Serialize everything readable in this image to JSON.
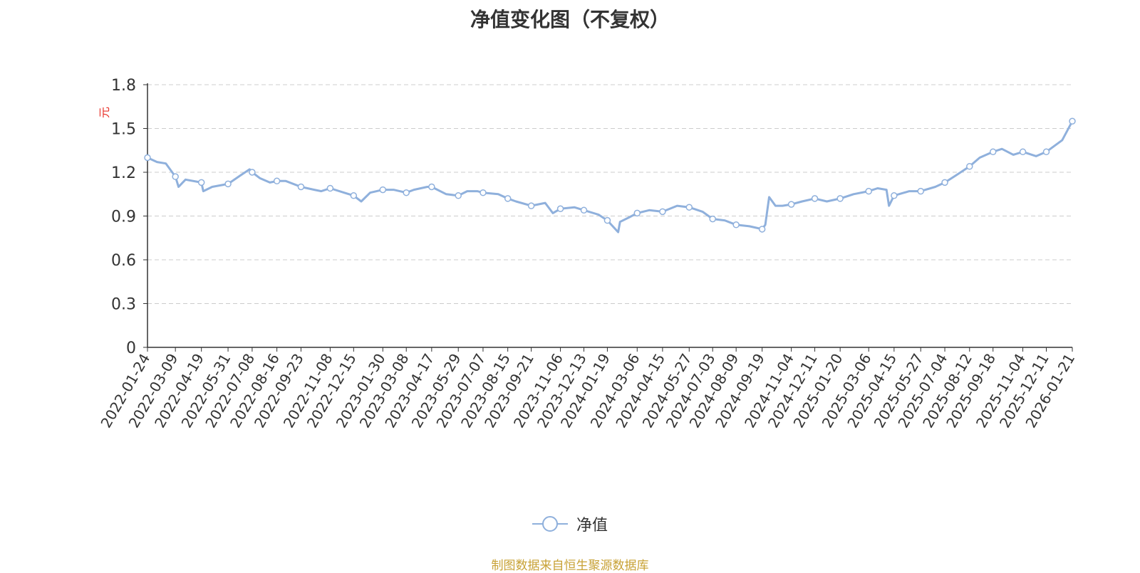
{
  "page": {
    "title": "净值变化图（不复权）",
    "source": "制图数据来自恒生聚源数据库"
  },
  "legend": {
    "label": "净值"
  },
  "colors": {
    "line": "#8fb0dc",
    "grid": "#cccccc",
    "axis": "#333333",
    "unit": "#e8322a",
    "source": "#c8a236"
  },
  "chart_data": {
    "type": "line",
    "title": "净值变化图（不复权）",
    "ylabel": "元",
    "ylim": [
      0,
      1.8
    ],
    "yticks": [
      "0",
      "0.3",
      "0.6",
      "0.9",
      "1.2",
      "1.5",
      "1.8"
    ],
    "grid": true,
    "legend_position": "bottom-center",
    "xtick_labels": [
      "2022-01-24",
      "2022-03-09",
      "2022-04-19",
      "2022-05-31",
      "2022-07-08",
      "2022-08-16",
      "2022-09-23",
      "2022-11-08",
      "2022-12-15",
      "2023-01-30",
      "2023-03-08",
      "2023-04-17",
      "2023-05-29",
      "2023-07-07",
      "2023-08-15",
      "2023-09-21",
      "2023-11-06",
      "2023-12-13",
      "2024-01-19",
      "2024-03-06",
      "2024-04-15",
      "2024-05-27",
      "2024-07-03",
      "2024-08-09",
      "2024-09-19",
      "2024-11-04",
      "2024-12-11",
      "2025-01-20",
      "2025-03-06",
      "2025-04-15",
      "2025-05-27",
      "2025-07-04",
      "2025-08-12",
      "2025-09-18",
      "2025-11-04",
      "2025-12-11",
      "2026-01-21"
    ],
    "series": [
      {
        "name": "净值",
        "x": [
          "2022-01-24",
          "2022-02-08",
          "2022-02-22",
          "2022-03-09",
          "2022-03-14",
          "2022-03-25",
          "2022-04-19",
          "2022-04-22",
          "2022-05-06",
          "2022-05-31",
          "2022-06-20",
          "2022-07-04",
          "2022-07-08",
          "2022-07-20",
          "2022-08-05",
          "2022-08-16",
          "2022-08-30",
          "2022-09-23",
          "2022-10-14",
          "2022-10-25",
          "2022-11-08",
          "2022-11-30",
          "2022-12-15",
          "2022-12-27",
          "2023-01-10",
          "2023-01-30",
          "2023-02-16",
          "2023-03-08",
          "2023-03-20",
          "2023-04-10",
          "2023-04-17",
          "2023-05-10",
          "2023-05-29",
          "2023-06-12",
          "2023-06-28",
          "2023-07-07",
          "2023-07-31",
          "2023-08-15",
          "2023-08-28",
          "2023-09-21",
          "2023-10-13",
          "2023-10-25",
          "2023-11-06",
          "2023-11-28",
          "2023-12-13",
          "2024-01-05",
          "2024-01-19",
          "2024-02-05",
          "2024-02-08",
          "2024-02-22",
          "2024-03-06",
          "2024-03-25",
          "2024-04-15",
          "2024-05-08",
          "2024-05-27",
          "2024-06-17",
          "2024-07-03",
          "2024-07-22",
          "2024-08-09",
          "2024-08-30",
          "2024-09-19",
          "2024-09-24",
          "2024-09-30",
          "2024-10-10",
          "2024-10-21",
          "2024-11-04",
          "2024-11-21",
          "2024-12-11",
          "2024-12-30",
          "2025-01-20",
          "2025-02-10",
          "2025-03-06",
          "2025-03-20",
          "2025-04-03",
          "2025-04-07",
          "2025-04-15",
          "2025-05-09",
          "2025-05-27",
          "2025-06-19",
          "2025-07-04",
          "2025-07-22",
          "2025-08-12",
          "2025-08-28",
          "2025-09-18",
          "2025-10-02",
          "2025-10-20",
          "2025-11-04",
          "2025-11-25",
          "2025-12-11",
          "2026-01-05",
          "2026-01-21"
        ],
        "values": [
          1.3,
          1.27,
          1.26,
          1.17,
          1.1,
          1.15,
          1.13,
          1.07,
          1.1,
          1.12,
          1.18,
          1.22,
          1.2,
          1.16,
          1.13,
          1.14,
          1.14,
          1.1,
          1.08,
          1.07,
          1.09,
          1.06,
          1.04,
          1.0,
          1.06,
          1.08,
          1.08,
          1.06,
          1.08,
          1.1,
          1.1,
          1.05,
          1.04,
          1.07,
          1.07,
          1.06,
          1.05,
          1.02,
          1.0,
          0.97,
          0.99,
          0.92,
          0.95,
          0.96,
          0.94,
          0.91,
          0.87,
          0.79,
          0.86,
          0.89,
          0.92,
          0.94,
          0.93,
          0.97,
          0.96,
          0.93,
          0.88,
          0.87,
          0.84,
          0.83,
          0.81,
          0.84,
          1.03,
          0.97,
          0.97,
          0.98,
          1.0,
          1.02,
          1.0,
          1.02,
          1.05,
          1.07,
          1.09,
          1.08,
          0.97,
          1.04,
          1.07,
          1.07,
          1.1,
          1.13,
          1.18,
          1.24,
          1.3,
          1.34,
          1.36,
          1.32,
          1.34,
          1.31,
          1.34,
          1.42,
          1.55
        ]
      }
    ]
  }
}
